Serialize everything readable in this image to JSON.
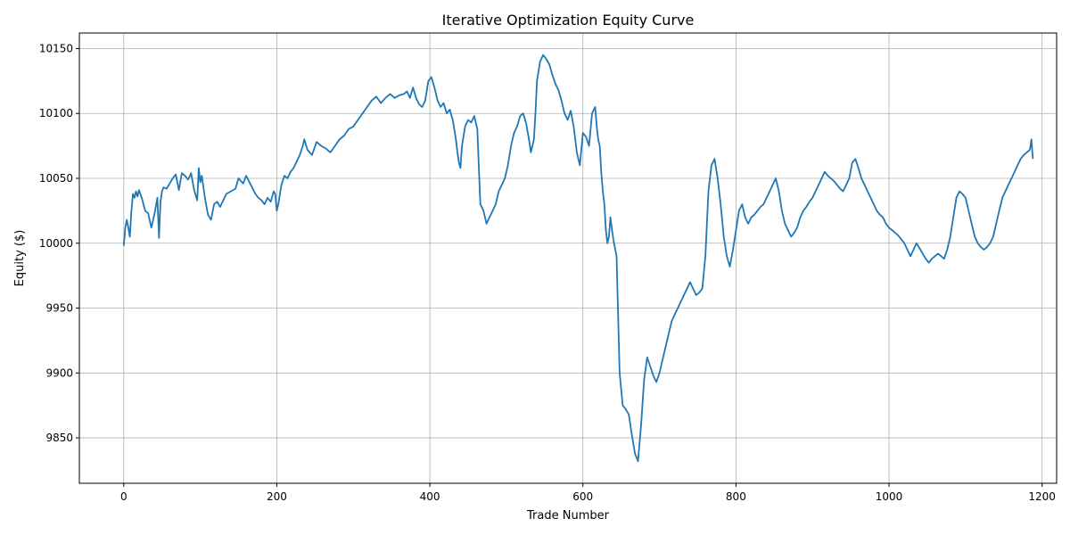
{
  "chart_data": {
    "type": "line",
    "title": "Iterative Optimization Equity Curve",
    "xlabel": "Trade Number",
    "ylabel": "Equity ($)",
    "xlim": [
      -58,
      1219
    ],
    "ylim": [
      9815,
      10162
    ],
    "x_ticks": [
      0,
      200,
      400,
      600,
      800,
      1000,
      1200
    ],
    "y_ticks": [
      9850,
      9900,
      9950,
      10000,
      10050,
      10100,
      10150
    ],
    "x_tick_labels": [
      "0",
      "200",
      "400",
      "600",
      "800",
      "1000",
      "1200"
    ],
    "y_tick_labels": [
      "9850",
      "9900",
      "9950",
      "10000",
      "10050",
      "10100",
      "10150"
    ],
    "grid": true,
    "line_color": "#1f77b4",
    "series": [
      {
        "x": [
          0,
          2,
          4,
          6,
          8,
          10,
          12,
          14,
          16,
          18,
          20,
          24,
          28,
          32,
          36,
          40,
          44,
          46,
          48,
          50,
          52,
          56,
          60,
          64,
          68,
          72,
          76,
          80,
          84,
          88,
          92,
          96,
          98,
          100,
          102,
          106,
          110,
          114,
          118,
          122,
          126,
          130,
          134,
          140,
          146,
          150,
          156,
          160,
          166,
          172,
          176,
          180,
          184,
          188,
          192,
          196,
          198,
          200,
          202,
          206,
          210,
          214,
          218,
          222,
          226,
          230,
          234,
          236,
          240,
          246,
          252,
          258,
          264,
          270,
          276,
          282,
          288,
          294,
          300,
          306,
          312,
          318,
          324,
          330,
          336,
          342,
          348,
          354,
          360,
          366,
          370,
          374,
          378,
          382,
          386,
          390,
          394,
          398,
          402,
          406,
          410,
          414,
          418,
          422,
          426,
          430,
          434,
          436,
          438,
          440,
          442,
          446,
          450,
          454,
          458,
          462,
          466,
          470,
          474,
          478,
          482,
          486,
          490,
          494,
          498,
          502,
          506,
          510,
          514,
          518,
          522,
          526,
          530,
          532,
          534,
          536,
          538,
          540,
          544,
          548,
          552,
          556,
          560,
          564,
          568,
          572,
          576,
          580,
          584,
          588,
          592,
          596,
          600,
          604,
          608,
          612,
          616,
          618,
          620,
          622,
          624,
          626,
          628,
          630,
          632,
          634,
          636,
          638,
          640,
          644,
          648,
          652,
          656,
          660,
          664,
          668,
          672,
          676,
          680,
          684,
          688,
          692,
          696,
          700,
          704,
          708,
          712,
          716,
          720,
          724,
          728,
          732,
          736,
          740,
          744,
          748,
          752,
          756,
          760,
          764,
          768,
          772,
          776,
          780,
          784,
          788,
          792,
          796,
          800,
          804,
          808,
          812,
          816,
          820,
          824,
          828,
          832,
          836,
          840,
          844,
          848,
          852,
          856,
          860,
          864,
          868,
          872,
          876,
          880,
          884,
          888,
          892,
          896,
          900,
          904,
          908,
          912,
          916,
          920,
          924,
          928,
          932,
          936,
          940,
          944,
          948,
          952,
          956,
          960,
          964,
          968,
          972,
          976,
          980,
          984,
          988,
          992,
          996,
          1000,
          1004,
          1008,
          1012,
          1016,
          1020,
          1024,
          1028,
          1032,
          1036,
          1040,
          1044,
          1048,
          1052,
          1056,
          1060,
          1064,
          1068,
          1072,
          1076,
          1080,
          1084,
          1088,
          1092,
          1096,
          1100,
          1104,
          1108,
          1112,
          1116,
          1120,
          1124,
          1128,
          1132,
          1136,
          1140,
          1144,
          1148,
          1152,
          1156,
          1160,
          1164,
          1168,
          1172,
          1176,
          1180,
          1184,
          1186,
          1188
        ],
        "y": [
          9998,
          10012,
          10018,
          10012,
          10005,
          10025,
          10038,
          10035,
          10040,
          10036,
          10041,
          10034,
          10025,
          10023,
          10012,
          10022,
          10035,
          10004,
          10032,
          10040,
          10043,
          10042,
          10046,
          10050,
          10053,
          10041,
          10054,
          10052,
          10049,
          10054,
          10041,
          10033,
          10058,
          10047,
          10052,
          10035,
          10022,
          10018,
          10030,
          10032,
          10028,
          10033,
          10038,
          10040,
          10042,
          10050,
          10046,
          10052,
          10045,
          10038,
          10035,
          10033,
          10030,
          10035,
          10032,
          10040,
          10038,
          10025,
          10030,
          10045,
          10052,
          10050,
          10055,
          10058,
          10063,
          10068,
          10075,
          10080,
          10072,
          10068,
          10078,
          10075,
          10073,
          10070,
          10075,
          10080,
          10083,
          10088,
          10090,
          10095,
          10100,
          10105,
          10110,
          10113,
          10108,
          10112,
          10115,
          10112,
          10114,
          10115,
          10117,
          10112,
          10120,
          10112,
          10107,
          10105,
          10110,
          10125,
          10128,
          10120,
          10110,
          10105,
          10108,
          10100,
          10103,
          10095,
          10080,
          10070,
          10062,
          10058,
          10075,
          10090,
          10095,
          10093,
          10098,
          10088,
          10030,
          10025,
          10015,
          10020,
          10025,
          10030,
          10040,
          10045,
          10050,
          10060,
          10075,
          10085,
          10090,
          10098,
          10100,
          10092,
          10078,
          10070,
          10075,
          10080,
          10100,
          10125,
          10140,
          10145,
          10142,
          10138,
          10130,
          10123,
          10118,
          10110,
          10100,
          10095,
          10102,
          10090,
          10070,
          10060,
          10085,
          10082,
          10075,
          10100,
          10105,
          10090,
          10080,
          10075,
          10055,
          10040,
          10030,
          10010,
          10000,
          10005,
          10020,
          10010,
          10002,
          9990,
          9900,
          9875,
          9872,
          9868,
          9852,
          9838,
          9832,
          9860,
          9895,
          9912,
          9905,
          9898,
          9893,
          9900,
          9910,
          9920,
          9930,
          9940,
          9945,
          9950,
          9955,
          9960,
          9965,
          9970,
          9965,
          9960,
          9962,
          9965,
          9990,
          10040,
          10060,
          10065,
          10050,
          10030,
          10005,
          9990,
          9982,
          9995,
          10010,
          10025,
          10030,
          10020,
          10015,
          10020,
          10022,
          10025,
          10028,
          10030,
          10035,
          10040,
          10045,
          10050,
          10040,
          10025,
          10015,
          10010,
          10005,
          10008,
          10012,
          10020,
          10025,
          10028,
          10032,
          10035,
          10040,
          10045,
          10050,
          10055,
          10052,
          10050,
          10048,
          10045,
          10042,
          10040,
          10045,
          10050,
          10062,
          10065,
          10058,
          10050,
          10045,
          10040,
          10035,
          10030,
          10025,
          10022,
          10020,
          10015,
          10012,
          10010,
          10008,
          10006,
          10003,
          10000,
          9995,
          9990,
          9995,
          10000,
          9996,
          9992,
          9988,
          9985,
          9988,
          9990,
          9992,
          9990,
          9988,
          9995,
          10005,
          10020,
          10035,
          10040,
          10038,
          10035,
          10025,
          10015,
          10005,
          10000,
          9997,
          9995,
          9997,
          10000,
          10005,
          10015,
          10025,
          10035,
          10040,
          10045,
          10050,
          10055,
          10060,
          10065,
          10068,
          10070,
          10072,
          10080,
          10065
        ]
      }
    ]
  }
}
